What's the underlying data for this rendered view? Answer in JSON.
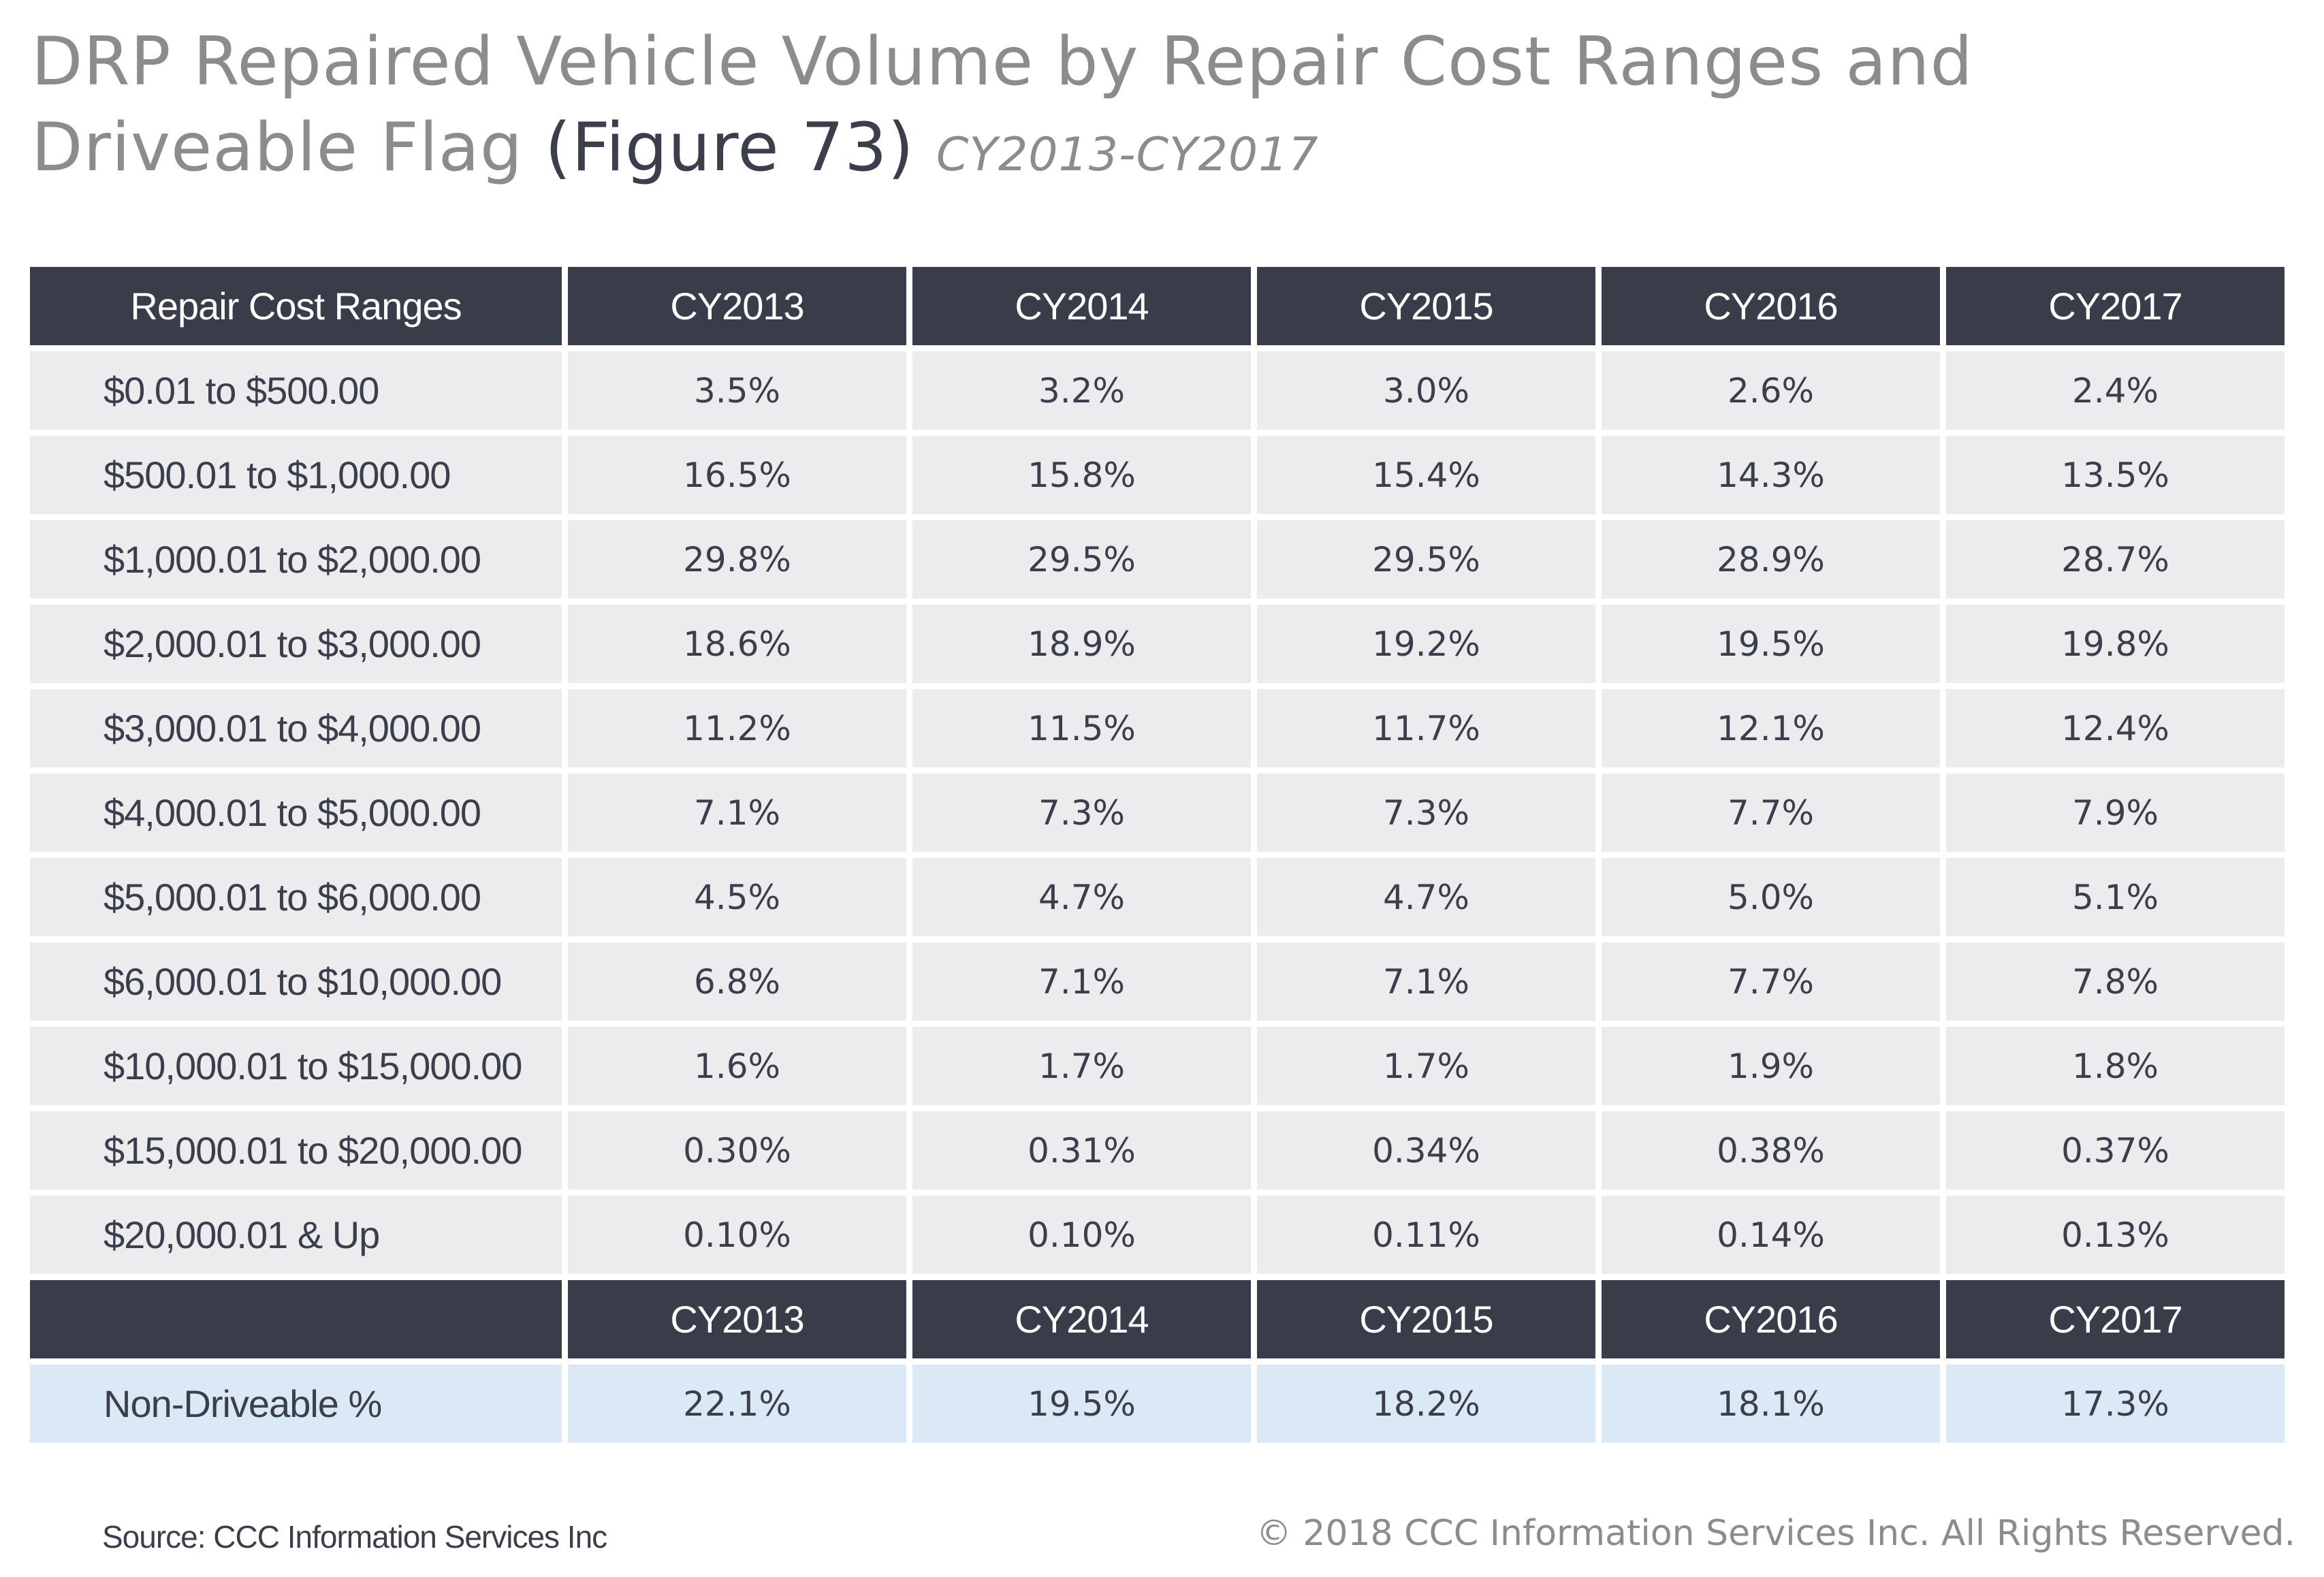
{
  "title": {
    "main": "DRP Repaired Vehicle Volume by Repair Cost Ranges and Driveable Flag",
    "figure": "(Figure 73)",
    "period": "CY2013-CY2017"
  },
  "chart_data": {
    "type": "table",
    "columns": [
      "Repair Cost Ranges",
      "CY2013",
      "CY2014",
      "CY2015",
      "CY2016",
      "CY2017"
    ],
    "rows": [
      {
        "range": "$0.01 to $500.00",
        "values": [
          "3.5%",
          "3.2%",
          "3.0%",
          "2.6%",
          "2.4%"
        ]
      },
      {
        "range": "$500.01 to $1,000.00",
        "values": [
          "16.5%",
          "15.8%",
          "15.4%",
          "14.3%",
          "13.5%"
        ]
      },
      {
        "range": "$1,000.01 to $2,000.00",
        "values": [
          "29.8%",
          "29.5%",
          "29.5%",
          "28.9%",
          "28.7%"
        ]
      },
      {
        "range": "$2,000.01 to $3,000.00",
        "values": [
          "18.6%",
          "18.9%",
          "19.2%",
          "19.5%",
          "19.8%"
        ]
      },
      {
        "range": "$3,000.01 to $4,000.00",
        "values": [
          "11.2%",
          "11.5%",
          "11.7%",
          "12.1%",
          "12.4%"
        ]
      },
      {
        "range": "$4,000.01 to $5,000.00",
        "values": [
          "7.1%",
          "7.3%",
          "7.3%",
          "7.7%",
          "7.9%"
        ]
      },
      {
        "range": "$5,000.01 to $6,000.00",
        "values": [
          "4.5%",
          "4.7%",
          "4.7%",
          "5.0%",
          "5.1%"
        ]
      },
      {
        "range": "$6,000.01 to $10,000.00",
        "values": [
          "6.8%",
          "7.1%",
          "7.1%",
          "7.7%",
          "7.8%"
        ]
      },
      {
        "range": "$10,000.01 to $15,000.00",
        "values": [
          "1.6%",
          "1.7%",
          "1.7%",
          "1.9%",
          "1.8%"
        ]
      },
      {
        "range": "$15,000.01 to $20,000.00",
        "values": [
          "0.30%",
          "0.31%",
          "0.34%",
          "0.38%",
          "0.37%"
        ]
      },
      {
        "range": "$20,000.01 & Up",
        "values": [
          "0.10%",
          "0.10%",
          "0.11%",
          "0.14%",
          "0.13%"
        ]
      }
    ],
    "driveable_table": {
      "columns": [
        "",
        "CY2013",
        "CY2014",
        "CY2015",
        "CY2016",
        "CY2017"
      ],
      "rows": [
        {
          "label": "Non-Driveable %",
          "values": [
            "22.1%",
            "19.5%",
            "18.2%",
            "18.1%",
            "17.3%"
          ]
        }
      ]
    }
  },
  "footer": {
    "source": "Source:  CCC Information Services Inc",
    "copyright": "© 2018 CCC Information Services Inc. All Rights Reserved."
  },
  "colors": {
    "header_bg": "#393d49",
    "row_bg": "#ececee",
    "highlight_bg": "#dbe8f5",
    "text": "#3b3f4c",
    "title_gray": "#8c8c8c"
  }
}
